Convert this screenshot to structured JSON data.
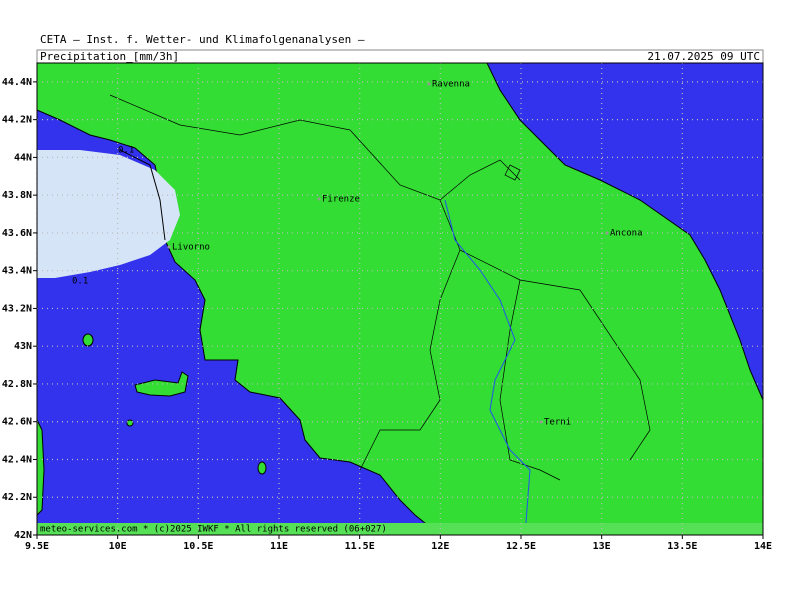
{
  "map": {
    "header": "CETA – Inst. f. Wetter- und Klimafolgenanalysen –",
    "title": "Precipitation_[mm/3h]",
    "datetime": "21.07.2025 09 UTC",
    "footer": "meteo-services.com * (c)2025 IWKF * All rights reserved (06+027)",
    "lon_range": [
      9.5,
      14
    ],
    "lat_range": [
      42,
      44.5
    ],
    "lon_ticks": [
      {
        "value": 9.5,
        "label": "9.5E"
      },
      {
        "value": 10,
        "label": "10E"
      },
      {
        "value": 10.5,
        "label": "10.5E"
      },
      {
        "value": 11,
        "label": "11E"
      },
      {
        "value": 11.5,
        "label": "11.5E"
      },
      {
        "value": 12,
        "label": "12E"
      },
      {
        "value": 12.5,
        "label": "12.5E"
      },
      {
        "value": 13,
        "label": "13E"
      },
      {
        "value": 13.5,
        "label": "13.5E"
      },
      {
        "value": 14,
        "label": "14E"
      }
    ],
    "lat_ticks": [
      {
        "value": 42,
        "label": "42N"
      },
      {
        "value": 42.2,
        "label": "42.2N"
      },
      {
        "value": 42.4,
        "label": "42.4N"
      },
      {
        "value": 42.6,
        "label": "42.6N"
      },
      {
        "value": 42.8,
        "label": "42.8N"
      },
      {
        "value": 43,
        "label": "43N"
      },
      {
        "value": 43.2,
        "label": "43.2N"
      },
      {
        "value": 43.4,
        "label": "43.4N"
      },
      {
        "value": 43.6,
        "label": "43.6N"
      },
      {
        "value": 43.8,
        "label": "43.8N"
      },
      {
        "value": 44,
        "label": "44N"
      },
      {
        "value": 44.2,
        "label": "44.2N"
      },
      {
        "value": 44.4,
        "label": "44.4N"
      }
    ],
    "cities": [
      "Ravenna",
      "Firenze",
      "Livorno",
      "Ancona",
      "Terni"
    ],
    "contour_labels": [
      "0.1",
      "0.1"
    ]
  }
}
